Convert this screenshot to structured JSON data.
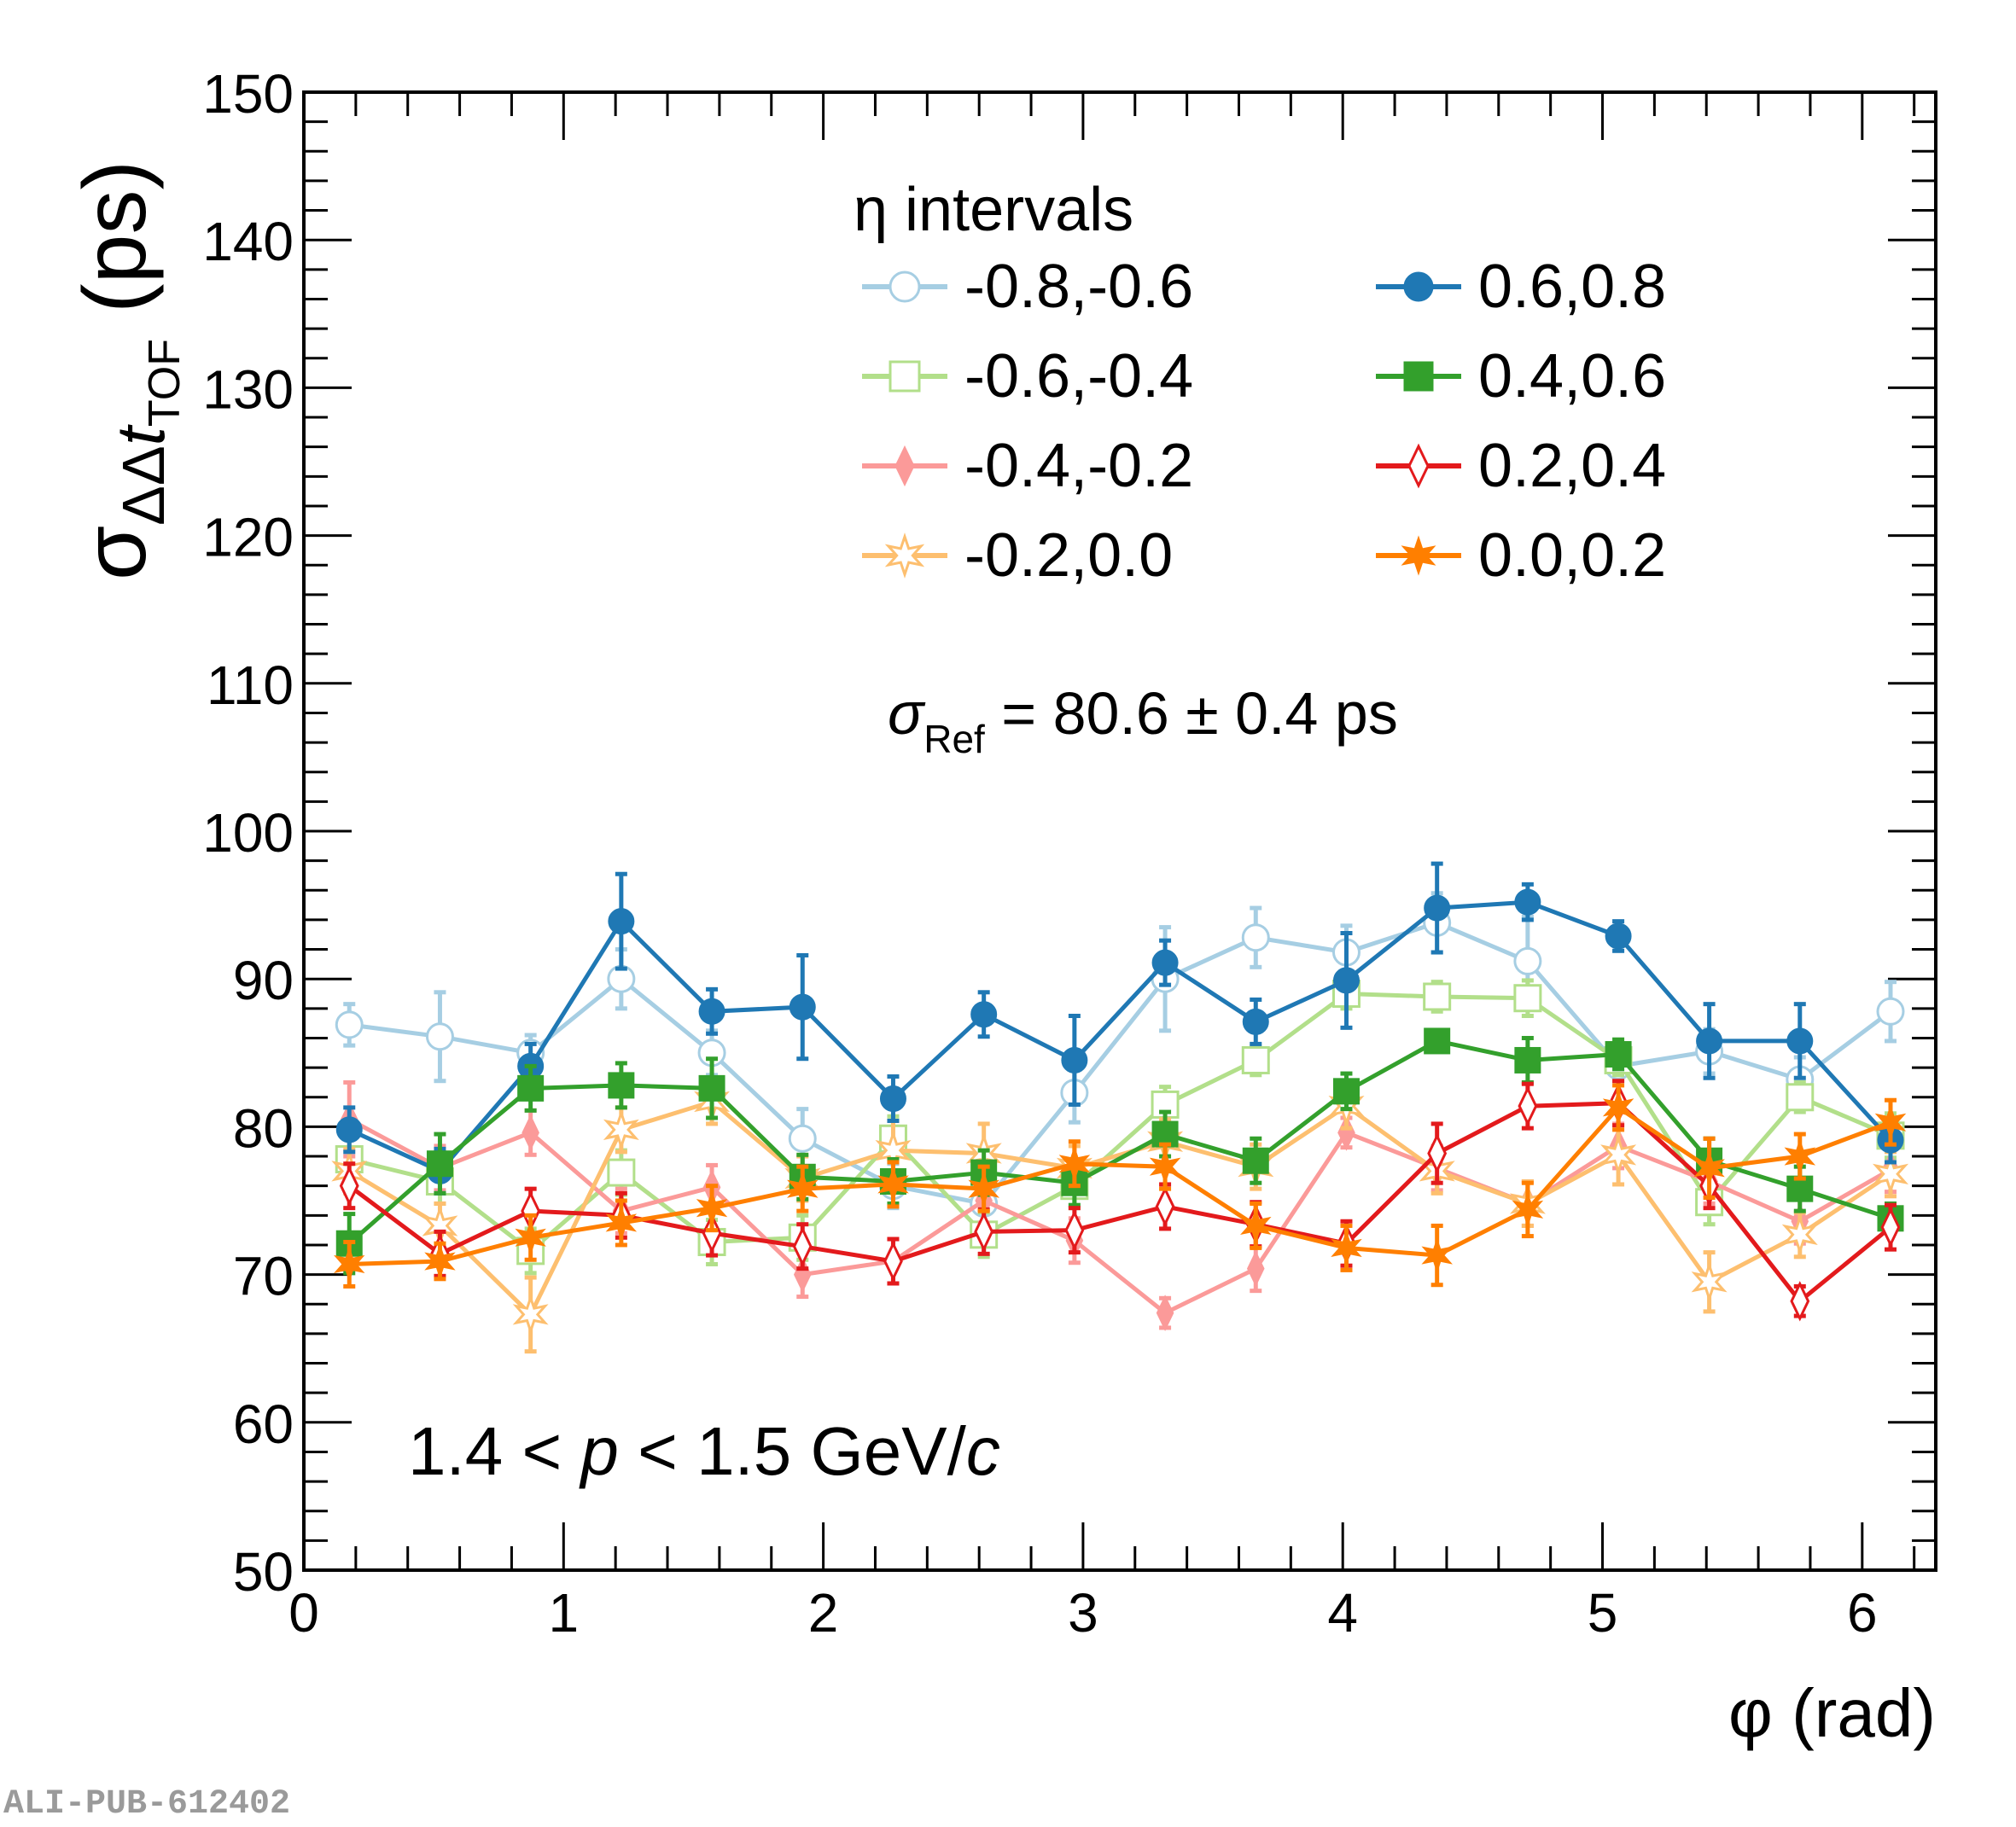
{
  "chart_data": {
    "type": "line",
    "title": "",
    "xlabel": "φ (rad)",
    "ylabel": "σ_ΔΔt_TOF (ps)",
    "ylabel_parts": {
      "main": "σ",
      "sub": "ΔΔ",
      "t": "t",
      "tsub": "TOF",
      "unit": "(ps)"
    },
    "xlim": [
      0,
      6.2832
    ],
    "ylim": [
      50,
      150
    ],
    "xticks": [
      0,
      1,
      2,
      3,
      4,
      5,
      6
    ],
    "yticks": [
      50,
      60,
      70,
      80,
      90,
      100,
      110,
      120,
      130,
      140,
      150
    ],
    "grid": false,
    "legend": {
      "title": "η intervals",
      "placement": "top-center",
      "columns": 2
    },
    "annotations": {
      "ref": {
        "sigma": "σ",
        "sub": "Ref",
        "text": " = 80.6 ± 0.4 ps"
      },
      "momentum": {
        "a": "1.4 < ",
        "p": "p",
        "b": " < 1.5 GeV/",
        "c": "c"
      }
    },
    "x": [
      0.175,
      0.524,
      0.873,
      1.222,
      1.571,
      1.92,
      2.269,
      2.618,
      2.967,
      3.316,
      3.665,
      4.014,
      4.363,
      4.712,
      5.061,
      5.411,
      5.76,
      6.109
    ],
    "series": [
      {
        "name": "-0.8,-0.6",
        "color": "#a6cee3",
        "marker": "open-circle",
        "values": [
          86.9,
          86.1,
          85.0,
          90.0,
          85.0,
          79.2,
          76.0,
          74.8,
          82.3,
          90.0,
          92.8,
          91.8,
          93.8,
          91.2,
          84.1,
          85.1,
          83.2,
          87.8
        ],
        "errors": [
          1.4,
          3.0,
          1.2,
          2.0,
          1.5,
          2.0,
          1.5,
          1.5,
          2.0,
          3.5,
          2.0,
          1.8,
          2.0,
          3.0,
          1.0,
          1.5,
          1.5,
          2.0
        ]
      },
      {
        "name": "-0.6,-0.4",
        "color": "#b2df8a",
        "marker": "open-square",
        "values": [
          77.8,
          76.3,
          71.6,
          76.9,
          72.2,
          72.5,
          79.2,
          72.7,
          76.0,
          81.5,
          84.5,
          89.0,
          88.8,
          88.7,
          84.5,
          74.9,
          82.0,
          79.4
        ],
        "errors": [
          1.5,
          1.5,
          1.5,
          1.5,
          1.5,
          1.5,
          1.5,
          1.5,
          1.5,
          1.2,
          1.0,
          1.0,
          1.0,
          1.2,
          1.0,
          1.5,
          1.0,
          1.5
        ]
      },
      {
        "name": "-0.4,-0.2",
        "color": "#fb9a99",
        "marker": "filled-diamond",
        "values": [
          80.5,
          77.2,
          79.6,
          74.3,
          75.9,
          70.0,
          70.9,
          75.0,
          72.3,
          67.4,
          70.4,
          79.6,
          77.2,
          74.8,
          78.7,
          76.3,
          73.6,
          77.1
        ],
        "errors": [
          2.5,
          1.5,
          1.5,
          1.5,
          1.5,
          1.5,
          1.5,
          1.5,
          1.5,
          1.0,
          1.5,
          1.0,
          1.5,
          1.5,
          1.5,
          1.5,
          1.5,
          1.5
        ]
      },
      {
        "name": "-0.2,0.0",
        "color": "#fdbf6f",
        "marker": "open-star",
        "values": [
          77.0,
          73.3,
          67.3,
          79.8,
          81.7,
          76.5,
          78.4,
          78.2,
          77.2,
          79.0,
          77.3,
          81.4,
          77.0,
          74.8,
          78.1,
          69.5,
          72.7,
          76.8
        ],
        "errors": [
          1.5,
          1.5,
          2.5,
          1.5,
          1.5,
          1.5,
          2.0,
          2.0,
          1.5,
          1.5,
          1.5,
          1.5,
          1.5,
          1.5,
          2.0,
          2.0,
          1.5,
          1.5
        ]
      },
      {
        "name": "0.6,0.8",
        "color": "#1f78b4",
        "marker": "filled-circle",
        "values": [
          79.8,
          77.0,
          84.1,
          93.9,
          87.8,
          88.1,
          81.9,
          87.6,
          84.5,
          91.1,
          87.1,
          89.9,
          94.8,
          95.2,
          92.9,
          85.8,
          85.8,
          79.1
        ],
        "errors": [
          1.5,
          1.5,
          1.5,
          3.2,
          1.5,
          3.5,
          1.5,
          1.5,
          3.0,
          1.5,
          1.5,
          3.2,
          3.0,
          1.2,
          1.0,
          2.5,
          2.5,
          1.5
        ]
      },
      {
        "name": "0.4,0.6",
        "color": "#33a02c",
        "marker": "filled-square",
        "values": [
          72.1,
          77.5,
          82.6,
          82.8,
          82.6,
          76.6,
          76.3,
          76.9,
          76.2,
          79.5,
          77.7,
          82.4,
          85.8,
          84.5,
          84.9,
          77.7,
          75.8,
          73.8
        ],
        "errors": [
          2.0,
          2.0,
          1.5,
          1.5,
          2.0,
          1.5,
          1.5,
          1.5,
          1.5,
          1.5,
          1.5,
          1.2,
          0.5,
          1.5,
          1.0,
          1.5,
          1.5,
          1.0
        ]
      },
      {
        "name": "0.2,0.4",
        "color": "#e31a1c",
        "marker": "open-diamond",
        "values": [
          76.0,
          71.4,
          74.3,
          74.0,
          72.8,
          71.9,
          70.9,
          72.9,
          73.0,
          74.6,
          73.4,
          72.1,
          78.2,
          81.4,
          81.6,
          76.0,
          68.2,
          73.2
        ],
        "errors": [
          1.5,
          1.5,
          1.5,
          1.5,
          1.5,
          1.5,
          1.5,
          1.5,
          1.5,
          1.5,
          1.5,
          1.5,
          2.0,
          1.5,
          1.5,
          1.5,
          1.0,
          1.5
        ]
      },
      {
        "name": "0.0,0.2",
        "color": "#ff7f00",
        "marker": "filled-star",
        "values": [
          70.7,
          70.9,
          72.5,
          73.5,
          74.5,
          75.8,
          76.1,
          75.8,
          77.5,
          77.3,
          73.3,
          71.8,
          71.3,
          74.4,
          81.3,
          77.2,
          78.0,
          80.3
        ],
        "errors": [
          1.5,
          1.2,
          1.5,
          1.5,
          1.5,
          1.5,
          1.5,
          1.5,
          1.5,
          1.5,
          1.5,
          1.5,
          2.0,
          1.8,
          1.5,
          2.0,
          1.5,
          1.5
        ]
      }
    ]
  },
  "watermark": "ALI-PUB-612402"
}
